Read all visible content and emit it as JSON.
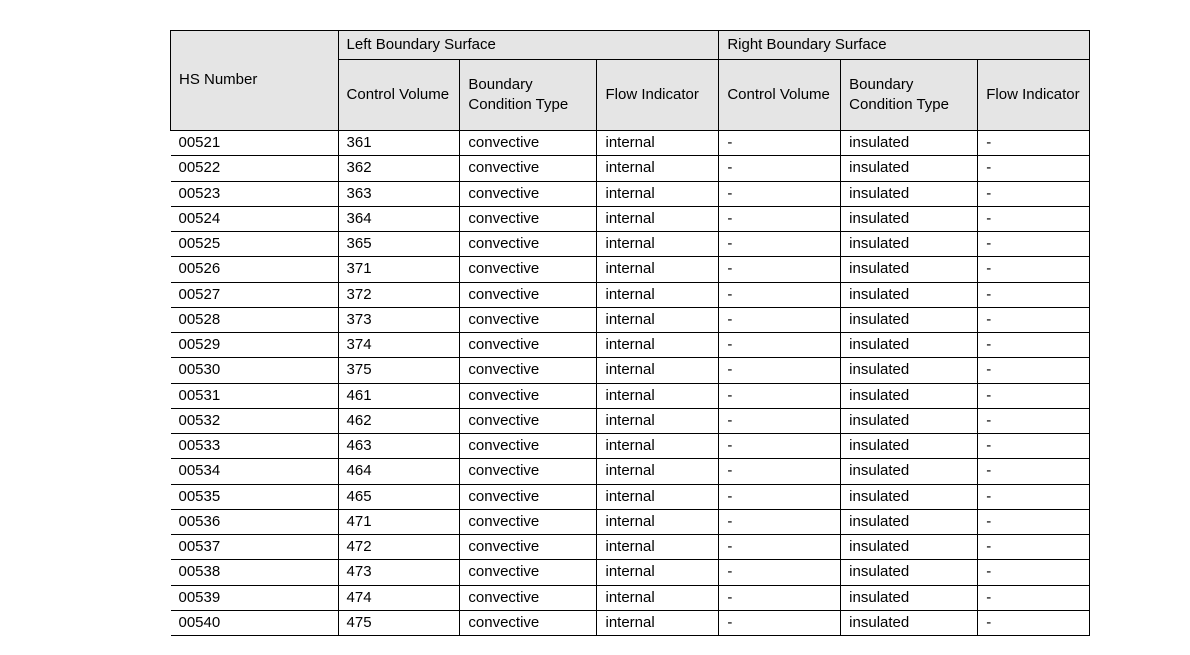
{
  "table": {
    "type": "table",
    "background_color": "#ffffff",
    "header_bg": "#e5e5e5",
    "border_color": "#000000",
    "font_family": "Arial",
    "font_size_pt": 11,
    "columns": [
      {
        "key": "hs",
        "width_pct": 16.5
      },
      {
        "key": "lcv",
        "width_pct": 12.0
      },
      {
        "key": "lbct",
        "width_pct": 13.5
      },
      {
        "key": "lfi",
        "width_pct": 12.0
      },
      {
        "key": "rcv",
        "width_pct": 12.0
      },
      {
        "key": "rbct",
        "width_pct": 13.5
      },
      {
        "key": "rfi",
        "width_pct": 11.0
      }
    ],
    "headers": {
      "hs_number": "HS  Number",
      "left_group": "Left  Boundary  Surface",
      "right_group": "Right  Boundary  Surface",
      "control_volume": "Control Volume",
      "boundary_condition_type": "Boundary Condition Type",
      "flow_indicator": "Flow Indicator"
    },
    "rows": [
      {
        "hs": "00521",
        "lcv": "361",
        "lbct": "convective",
        "lfi": "internal",
        "rcv": "-",
        "rbct": "insulated",
        "rfi": "-"
      },
      {
        "hs": "00522",
        "lcv": "362",
        "lbct": "convective",
        "lfi": "internal",
        "rcv": "-",
        "rbct": "insulated",
        "rfi": "-"
      },
      {
        "hs": "00523",
        "lcv": "363",
        "lbct": "convective",
        "lfi": "internal",
        "rcv": "-",
        "rbct": "insulated",
        "rfi": "-"
      },
      {
        "hs": "00524",
        "lcv": "364",
        "lbct": "convective",
        "lfi": "internal",
        "rcv": "-",
        "rbct": "insulated",
        "rfi": "-"
      },
      {
        "hs": "00525",
        "lcv": "365",
        "lbct": "convective",
        "lfi": "internal",
        "rcv": "-",
        "rbct": "insulated",
        "rfi": "-"
      },
      {
        "hs": "00526",
        "lcv": "371",
        "lbct": "convective",
        "lfi": "internal",
        "rcv": "-",
        "rbct": "insulated",
        "rfi": "-"
      },
      {
        "hs": "00527",
        "lcv": "372",
        "lbct": "convective",
        "lfi": "internal",
        "rcv": "-",
        "rbct": "insulated",
        "rfi": "-"
      },
      {
        "hs": "00528",
        "lcv": "373",
        "lbct": "convective",
        "lfi": "internal",
        "rcv": "-",
        "rbct": "insulated",
        "rfi": "-"
      },
      {
        "hs": "00529",
        "lcv": "374",
        "lbct": "convective",
        "lfi": "internal",
        "rcv": "-",
        "rbct": "insulated",
        "rfi": "-"
      },
      {
        "hs": "00530",
        "lcv": "375",
        "lbct": "convective",
        "lfi": "internal",
        "rcv": "-",
        "rbct": "insulated",
        "rfi": "-"
      },
      {
        "hs": "00531",
        "lcv": "461",
        "lbct": "convective",
        "lfi": "internal",
        "rcv": "-",
        "rbct": "insulated",
        "rfi": "-"
      },
      {
        "hs": "00532",
        "lcv": "462",
        "lbct": "convective",
        "lfi": "internal",
        "rcv": "-",
        "rbct": "insulated",
        "rfi": "-"
      },
      {
        "hs": "00533",
        "lcv": "463",
        "lbct": "convective",
        "lfi": "internal",
        "rcv": "-",
        "rbct": "insulated",
        "rfi": "-"
      },
      {
        "hs": "00534",
        "lcv": "464",
        "lbct": "convective",
        "lfi": "internal",
        "rcv": "-",
        "rbct": "insulated",
        "rfi": "-"
      },
      {
        "hs": "00535",
        "lcv": "465",
        "lbct": "convective",
        "lfi": "internal",
        "rcv": "-",
        "rbct": "insulated",
        "rfi": "-"
      },
      {
        "hs": "00536",
        "lcv": "471",
        "lbct": "convective",
        "lfi": "internal",
        "rcv": "-",
        "rbct": "insulated",
        "rfi": "-"
      },
      {
        "hs": "00537",
        "lcv": "472",
        "lbct": "convective",
        "lfi": "internal",
        "rcv": "-",
        "rbct": "insulated",
        "rfi": "-"
      },
      {
        "hs": "00538",
        "lcv": "473",
        "lbct": "convective",
        "lfi": "internal",
        "rcv": "-",
        "rbct": "insulated",
        "rfi": "-"
      },
      {
        "hs": "00539",
        "lcv": "474",
        "lbct": "convective",
        "lfi": "internal",
        "rcv": "-",
        "rbct": "insulated",
        "rfi": "-"
      },
      {
        "hs": "00540",
        "lcv": "475",
        "lbct": "convective",
        "lfi": "internal",
        "rcv": "-",
        "rbct": "insulated",
        "rfi": "-"
      }
    ]
  }
}
